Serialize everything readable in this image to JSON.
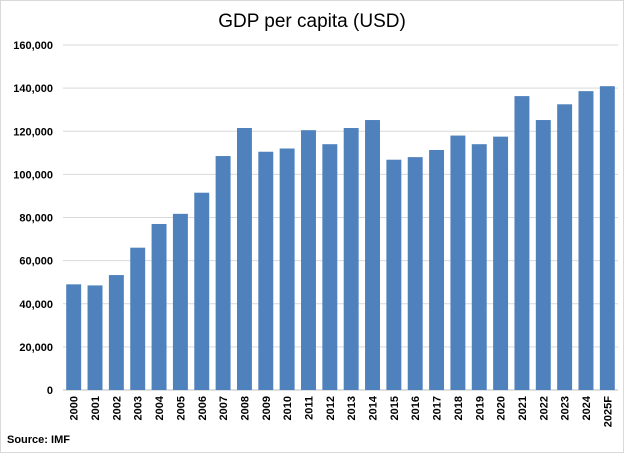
{
  "chart_data": {
    "type": "bar",
    "title": "GDP per capita (USD)",
    "source": "Source: IMF",
    "categories": [
      "2000",
      "2001",
      "2002",
      "2003",
      "2004",
      "2005",
      "2006",
      "2007",
      "2008",
      "2009",
      "2010",
      "2011",
      "2012",
      "2013",
      "2014",
      "2015",
      "2016",
      "2017",
      "2018",
      "2019",
      "2020",
      "2021",
      "2022",
      "2023",
      "2024",
      "2025F"
    ],
    "values": [
      49000,
      48500,
      53300,
      66000,
      77000,
      81700,
      91500,
      108500,
      121500,
      110500,
      112000,
      120500,
      114000,
      121500,
      125200,
      106800,
      108000,
      111300,
      118000,
      114000,
      117500,
      136300,
      125200,
      132500,
      138600,
      140900
    ],
    "ylim": [
      0,
      160000
    ],
    "yticks": [
      0,
      20000,
      40000,
      60000,
      80000,
      100000,
      120000,
      140000,
      160000
    ],
    "ytick_labels": [
      "0",
      "20,000",
      "40,000",
      "60,000",
      "80,000",
      "100,000",
      "120,000",
      "140,000",
      "160,000"
    ],
    "grid": true,
    "bar_color": "#4f81bd",
    "grid_color": "#d9d9d9"
  }
}
